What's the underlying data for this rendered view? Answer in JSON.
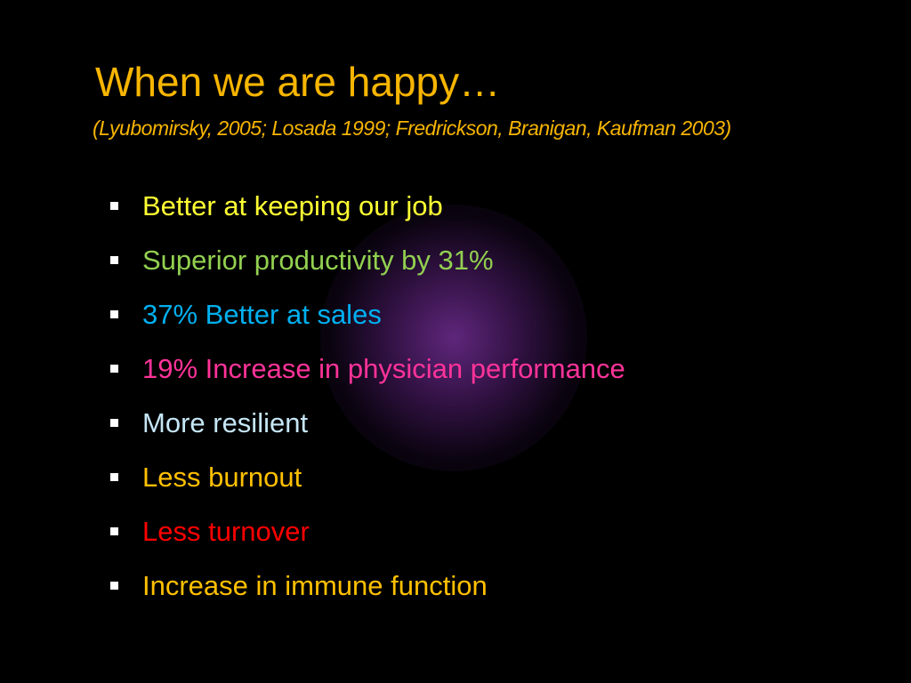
{
  "slide": {
    "title": "When we are happy…",
    "citation": "(Lyubomirsky, 2005; Losada 1999; Fredrickson, Branigan, Kaufman 2003)",
    "title_color": "#f7b500",
    "bullets": [
      {
        "text": "Better at keeping our job",
        "color": "#ffff33"
      },
      {
        "text": "Superior productivity by 31%",
        "color": "#92d050"
      },
      {
        "text": "37% Better at sales",
        "color": "#00b0f0"
      },
      {
        "text": "19% Increase in physician performance",
        "color": "#ff3399"
      },
      {
        "text": "More resilient",
        "color": "#c6e6f5"
      },
      {
        "text": "Less burnout",
        "color": "#ffc000"
      },
      {
        "text": "Less turnover",
        "color": "#ff0000"
      },
      {
        "text": "Increase in immune function",
        "color": "#ffc000"
      }
    ]
  }
}
